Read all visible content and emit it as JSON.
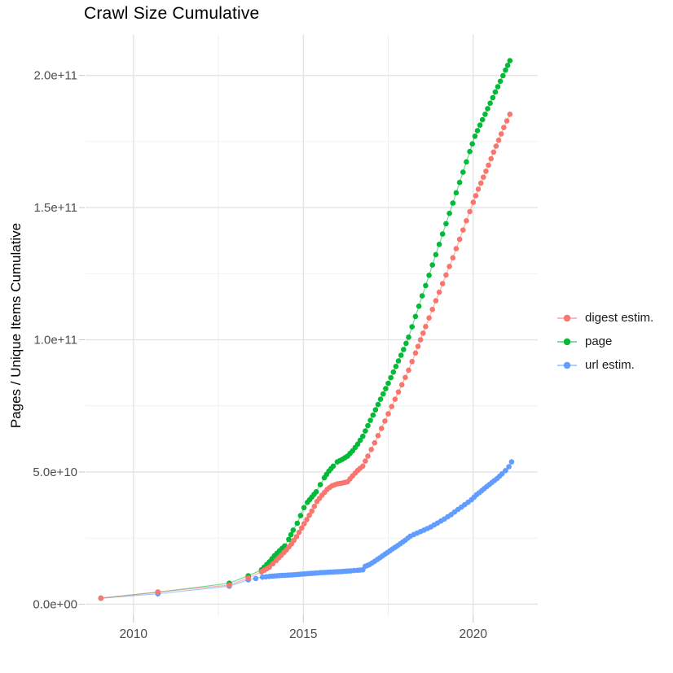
{
  "chart": {
    "title": "Crawl Size Cumulative",
    "ylabel": "Pages / Unique Items Cumulative",
    "legend_items": [
      {
        "id": "digest",
        "label": "digest estim.",
        "color": "#F8766D"
      },
      {
        "id": "page",
        "label": "page",
        "color": "#00BA38"
      },
      {
        "id": "url",
        "label": "url estim.",
        "color": "#619CFF"
      }
    ]
  },
  "chart_data": {
    "type": "scatter",
    "title": "Crawl Size Cumulative",
    "xlabel": "",
    "ylabel": "Pages / Unique Items Cumulative",
    "units": "values in billions (1e9) of pages / unique items",
    "legend_position": "right",
    "grid": "on",
    "x_range": [
      2008.59,
      2021.9
    ],
    "y_range_billions": [
      -4.5,
      215.6
    ],
    "x_ticks": [
      {
        "value": 2010,
        "label": "2010"
      },
      {
        "value": 2015,
        "label": "2015"
      },
      {
        "value": 2020,
        "label": "2020"
      }
    ],
    "y_ticks": [
      {
        "value": 0,
        "label": "0.0e+00"
      },
      {
        "value": 50,
        "label": "5.0e+10"
      },
      {
        "value": 100,
        "label": "1.0e+11"
      },
      {
        "value": 150,
        "label": "1.5e+11"
      },
      {
        "value": 200,
        "label": "2.0e+11"
      }
    ],
    "x_minor": [
      2012.5,
      2017.5
    ],
    "y_minor": [
      25,
      75,
      125,
      175
    ],
    "series": [
      {
        "name": "page",
        "color": "#00BA38",
        "points": [
          [
            2009.04,
            2.3
          ],
          [
            2010.72,
            4.5
          ],
          [
            2012.82,
            7.9
          ],
          [
            2013.38,
            10.7
          ],
          [
            2013.77,
            13.0
          ],
          [
            2014.0,
            16.0
          ],
          [
            2014.15,
            18.3
          ],
          [
            2014.3,
            20.2
          ],
          [
            2014.45,
            22.0
          ],
          [
            2014.57,
            24.5
          ],
          [
            2014.7,
            28.0
          ],
          [
            2014.82,
            30.6
          ],
          [
            2014.92,
            33.5
          ],
          [
            2015.02,
            36.5
          ],
          [
            2015.12,
            38.5
          ],
          [
            2015.25,
            40.5
          ],
          [
            2015.38,
            42.5
          ],
          [
            2015.5,
            45.2
          ],
          [
            2015.62,
            47.8
          ],
          [
            2015.75,
            50.3
          ],
          [
            2015.88,
            52.2
          ],
          [
            2016.0,
            53.8
          ],
          [
            2016.15,
            54.8
          ],
          [
            2016.3,
            56.0
          ],
          [
            2016.45,
            58.0
          ],
          [
            2016.6,
            60.5
          ],
          [
            2016.75,
            63.5
          ],
          [
            2016.9,
            67.5
          ],
          [
            2017.05,
            71.5
          ],
          [
            2017.2,
            75.5
          ],
          [
            2017.35,
            79.5
          ],
          [
            2017.5,
            83.5
          ],
          [
            2017.65,
            87.8
          ],
          [
            2017.8,
            92.0
          ],
          [
            2017.95,
            96.3
          ],
          [
            2018.1,
            101.0
          ],
          [
            2018.3,
            108.8
          ],
          [
            2018.5,
            116.6
          ],
          [
            2018.7,
            124.4
          ],
          [
            2018.9,
            132.2
          ],
          [
            2019.1,
            140.0
          ],
          [
            2019.3,
            147.8
          ],
          [
            2019.5,
            155.6
          ],
          [
            2019.7,
            163.4
          ],
          [
            2019.9,
            171.2
          ],
          [
            2020.05,
            177.0
          ],
          [
            2020.2,
            181.2
          ],
          [
            2020.35,
            185.3
          ],
          [
            2020.5,
            189.5
          ],
          [
            2020.65,
            193.7
          ],
          [
            2020.8,
            197.8
          ],
          [
            2020.95,
            202.0
          ],
          [
            2021.08,
            205.6
          ]
        ]
      },
      {
        "name": "url estim.",
        "color": "#619CFF",
        "points": [
          [
            2009.04,
            2.2
          ],
          [
            2010.72,
            3.9
          ],
          [
            2012.82,
            6.8
          ],
          [
            2013.38,
            9.2
          ],
          [
            2013.6,
            9.7
          ],
          [
            2013.8,
            10.2
          ],
          [
            2014.0,
            10.5
          ],
          [
            2014.3,
            10.8
          ],
          [
            2014.6,
            11.0
          ],
          [
            2014.9,
            11.3
          ],
          [
            2015.2,
            11.6
          ],
          [
            2015.5,
            11.9
          ],
          [
            2015.8,
            12.1
          ],
          [
            2016.1,
            12.3
          ],
          [
            2016.4,
            12.6
          ],
          [
            2016.6,
            12.8
          ],
          [
            2016.75,
            13.0
          ],
          [
            2016.82,
            14.3
          ],
          [
            2016.95,
            15.0
          ],
          [
            2017.1,
            16.2
          ],
          [
            2017.25,
            17.5
          ],
          [
            2017.4,
            18.9
          ],
          [
            2017.55,
            20.2
          ],
          [
            2017.7,
            21.5
          ],
          [
            2017.85,
            22.8
          ],
          [
            2018.0,
            24.2
          ],
          [
            2018.15,
            25.7
          ],
          [
            2018.35,
            26.9
          ],
          [
            2018.55,
            28.0
          ],
          [
            2018.75,
            29.2
          ],
          [
            2018.95,
            30.7
          ],
          [
            2019.15,
            32.2
          ],
          [
            2019.35,
            33.9
          ],
          [
            2019.55,
            35.8
          ],
          [
            2019.75,
            37.6
          ],
          [
            2019.95,
            39.5
          ],
          [
            2020.1,
            41.4
          ],
          [
            2020.25,
            42.9
          ],
          [
            2020.4,
            44.5
          ],
          [
            2020.55,
            46.0
          ],
          [
            2020.7,
            47.5
          ],
          [
            2020.85,
            49.3
          ],
          [
            2020.95,
            50.5
          ],
          [
            2021.05,
            52.0
          ],
          [
            2021.13,
            53.8
          ]
        ]
      },
      {
        "name": "digest estim.",
        "color": "#F8766D",
        "points": [
          [
            2009.04,
            2.2
          ],
          [
            2010.72,
            4.6
          ],
          [
            2012.82,
            7.2
          ],
          [
            2013.38,
            9.9
          ],
          [
            2013.77,
            12.2
          ],
          [
            2014.0,
            14.0
          ],
          [
            2014.2,
            16.5
          ],
          [
            2014.35,
            18.5
          ],
          [
            2014.5,
            20.5
          ],
          [
            2014.65,
            22.8
          ],
          [
            2014.8,
            25.5
          ],
          [
            2014.95,
            28.8
          ],
          [
            2015.1,
            32.0
          ],
          [
            2015.25,
            35.2
          ],
          [
            2015.4,
            38.8
          ],
          [
            2015.55,
            41.2
          ],
          [
            2015.7,
            43.4
          ],
          [
            2015.85,
            44.8
          ],
          [
            2016.0,
            45.5
          ],
          [
            2016.15,
            45.8
          ],
          [
            2016.3,
            46.3
          ],
          [
            2016.45,
            48.5
          ],
          [
            2016.6,
            50.6
          ],
          [
            2016.75,
            52.2
          ],
          [
            2016.9,
            56.0
          ],
          [
            2017.1,
            61.0
          ],
          [
            2017.3,
            66.5
          ],
          [
            2017.5,
            72.0
          ],
          [
            2017.7,
            77.5
          ],
          [
            2017.9,
            83.0
          ],
          [
            2018.1,
            88.5
          ],
          [
            2018.3,
            95.0
          ],
          [
            2018.45,
            100.0
          ],
          [
            2018.6,
            105.0
          ],
          [
            2018.8,
            111.5
          ],
          [
            2019.0,
            118.0
          ],
          [
            2019.2,
            124.5
          ],
          [
            2019.4,
            131.0
          ],
          [
            2019.6,
            138.0
          ],
          [
            2019.8,
            145.0
          ],
          [
            2020.0,
            152.0
          ],
          [
            2020.15,
            157.0
          ],
          [
            2020.3,
            161.5
          ],
          [
            2020.45,
            166.0
          ],
          [
            2020.6,
            171.0
          ],
          [
            2020.75,
            175.5
          ],
          [
            2020.9,
            180.3
          ],
          [
            2021.08,
            185.3
          ]
        ]
      }
    ]
  }
}
